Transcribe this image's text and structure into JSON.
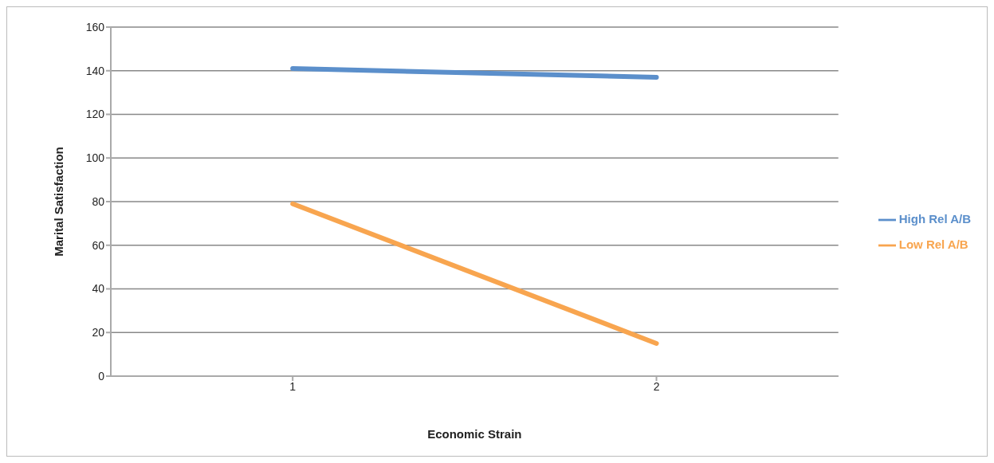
{
  "chart_data": {
    "type": "line",
    "xlabel": "Economic Strain",
    "ylabel": "Marital Satisfaction",
    "categories": [
      "1",
      "2"
    ],
    "series": [
      {
        "name": "High Rel A/B",
        "color": "#5b8fcb",
        "values": [
          141,
          137
        ]
      },
      {
        "name": "Low Rel A/B",
        "color": "#f8a54f",
        "values": [
          79,
          15
        ]
      }
    ],
    "ylim": [
      0,
      160
    ],
    "yticks": [
      0,
      20,
      40,
      60,
      80,
      100,
      120,
      140,
      160
    ],
    "grid": "y",
    "legend": "right",
    "marker": "none",
    "line_style": "solid"
  }
}
